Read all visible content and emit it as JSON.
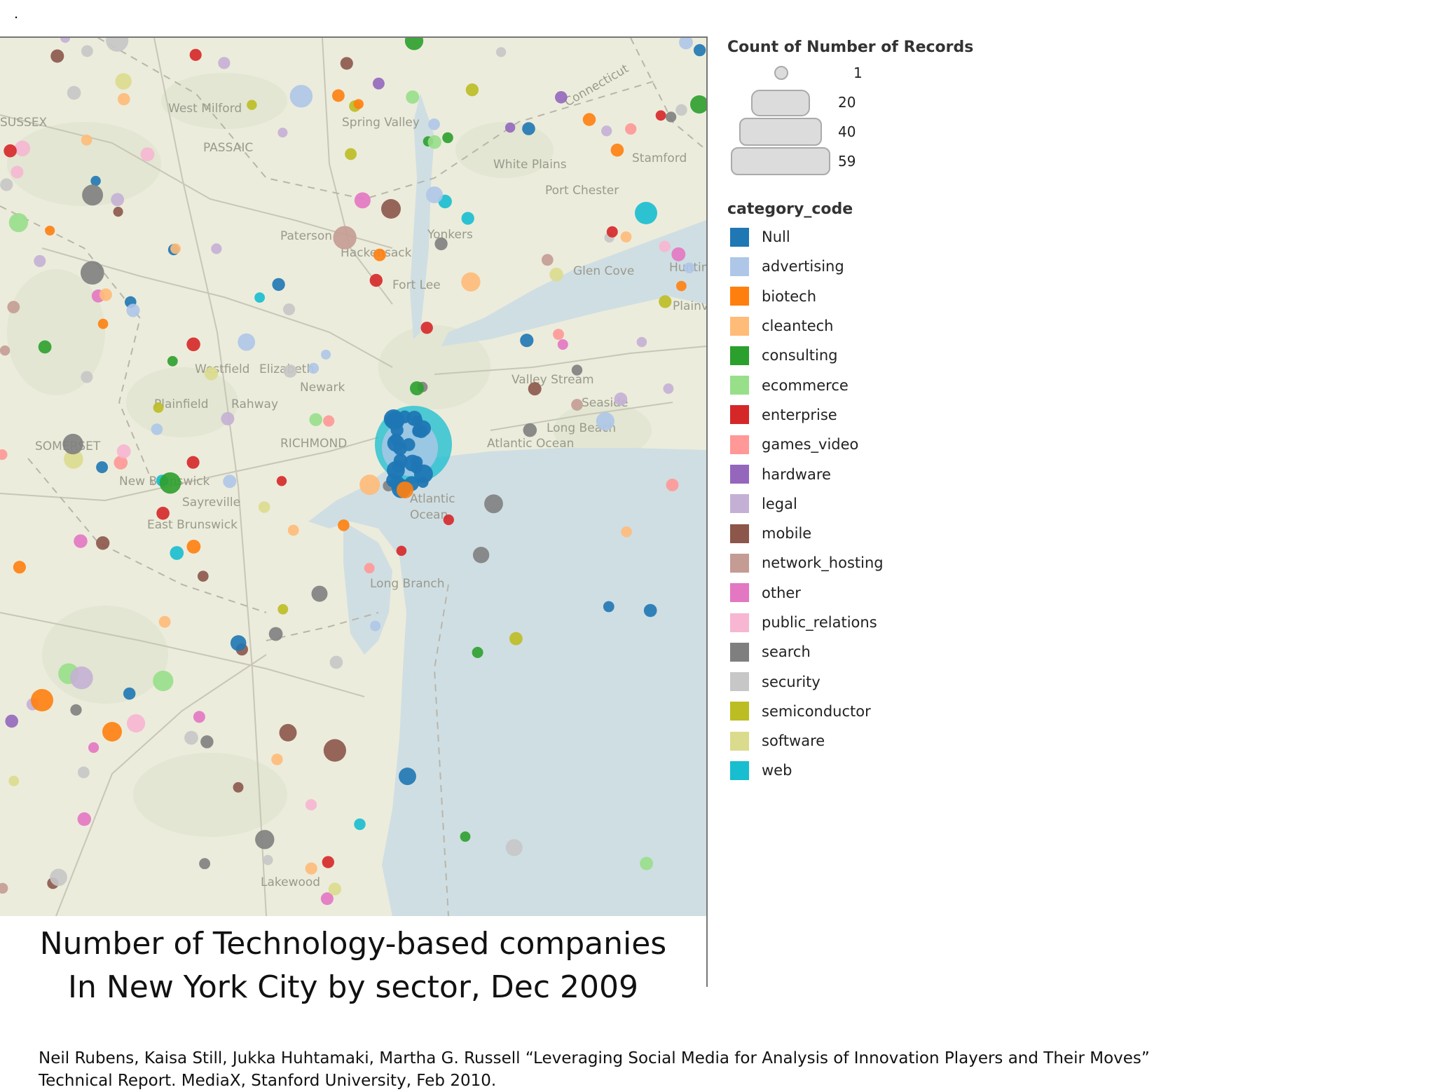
{
  "corner_mark": ".",
  "caption": {
    "line1": "Number of Technology-based companies",
    "line2": "In New York City by sector,  Dec 2009"
  },
  "citation": {
    "line1": "Neil Rubens, Kaisa Still, Jukka Huhtamaki, Martha G. Russell “Leveraging Social Media for Analysis of Innovation Players and Their Moves”",
    "line2": "Technical Report. MediaX, Stanford University, Feb 2010."
  },
  "legend": {
    "size_title": "Count of Number of Records",
    "sizes": [
      {
        "value": "1"
      },
      {
        "value": "20"
      },
      {
        "value": "40"
      },
      {
        "value": "59"
      }
    ],
    "category_title": "category_code",
    "categories": [
      {
        "label": "Null",
        "color": "#1f77b4"
      },
      {
        "label": "advertising",
        "color": "#aec7e8"
      },
      {
        "label": "biotech",
        "color": "#ff7f0e"
      },
      {
        "label": "cleantech",
        "color": "#ffbb78"
      },
      {
        "label": "consulting",
        "color": "#2ca02c"
      },
      {
        "label": "ecommerce",
        "color": "#98df8a"
      },
      {
        "label": "enterprise",
        "color": "#d62728"
      },
      {
        "label": "games_video",
        "color": "#ff9896"
      },
      {
        "label": "hardware",
        "color": "#9467bd"
      },
      {
        "label": "legal",
        "color": "#c5b0d5"
      },
      {
        "label": "mobile",
        "color": "#8c564b"
      },
      {
        "label": "network_hosting",
        "color": "#c49c94"
      },
      {
        "label": "other",
        "color": "#e377c2"
      },
      {
        "label": "public_relations",
        "color": "#f7b6d2"
      },
      {
        "label": "search",
        "color": "#7f7f7f"
      },
      {
        "label": "security",
        "color": "#c7c7c7"
      },
      {
        "label": "semiconductor",
        "color": "#bcbd22"
      },
      {
        "label": "software",
        "color": "#dbdb8d"
      },
      {
        "label": "web",
        "color": "#17becf"
      }
    ]
  },
  "map": {
    "place_labels": [
      "SUSSEX",
      "West Milford",
      "PASSAIC",
      "Spring Valley",
      "White Plains",
      "Port Chester",
      "Stamford",
      "Paterson",
      "Yonkers",
      "Glen Cove",
      "Hackensack",
      "Westfield",
      "Elizabeth",
      "Plainfield",
      "Rahway",
      "SOMERSET",
      "RICHMOND",
      "New Brunswick",
      "Sayreville",
      "East Brunswick",
      "Valley Stream",
      "Seaside",
      "Long Beach",
      "Atlantic Ocean",
      "Atlantic",
      "Ocean",
      "Long Branch",
      "Lakewood",
      "Huntington",
      "Newark",
      "Fort Lee",
      "Connecticut",
      "Plainview"
    ]
  }
}
